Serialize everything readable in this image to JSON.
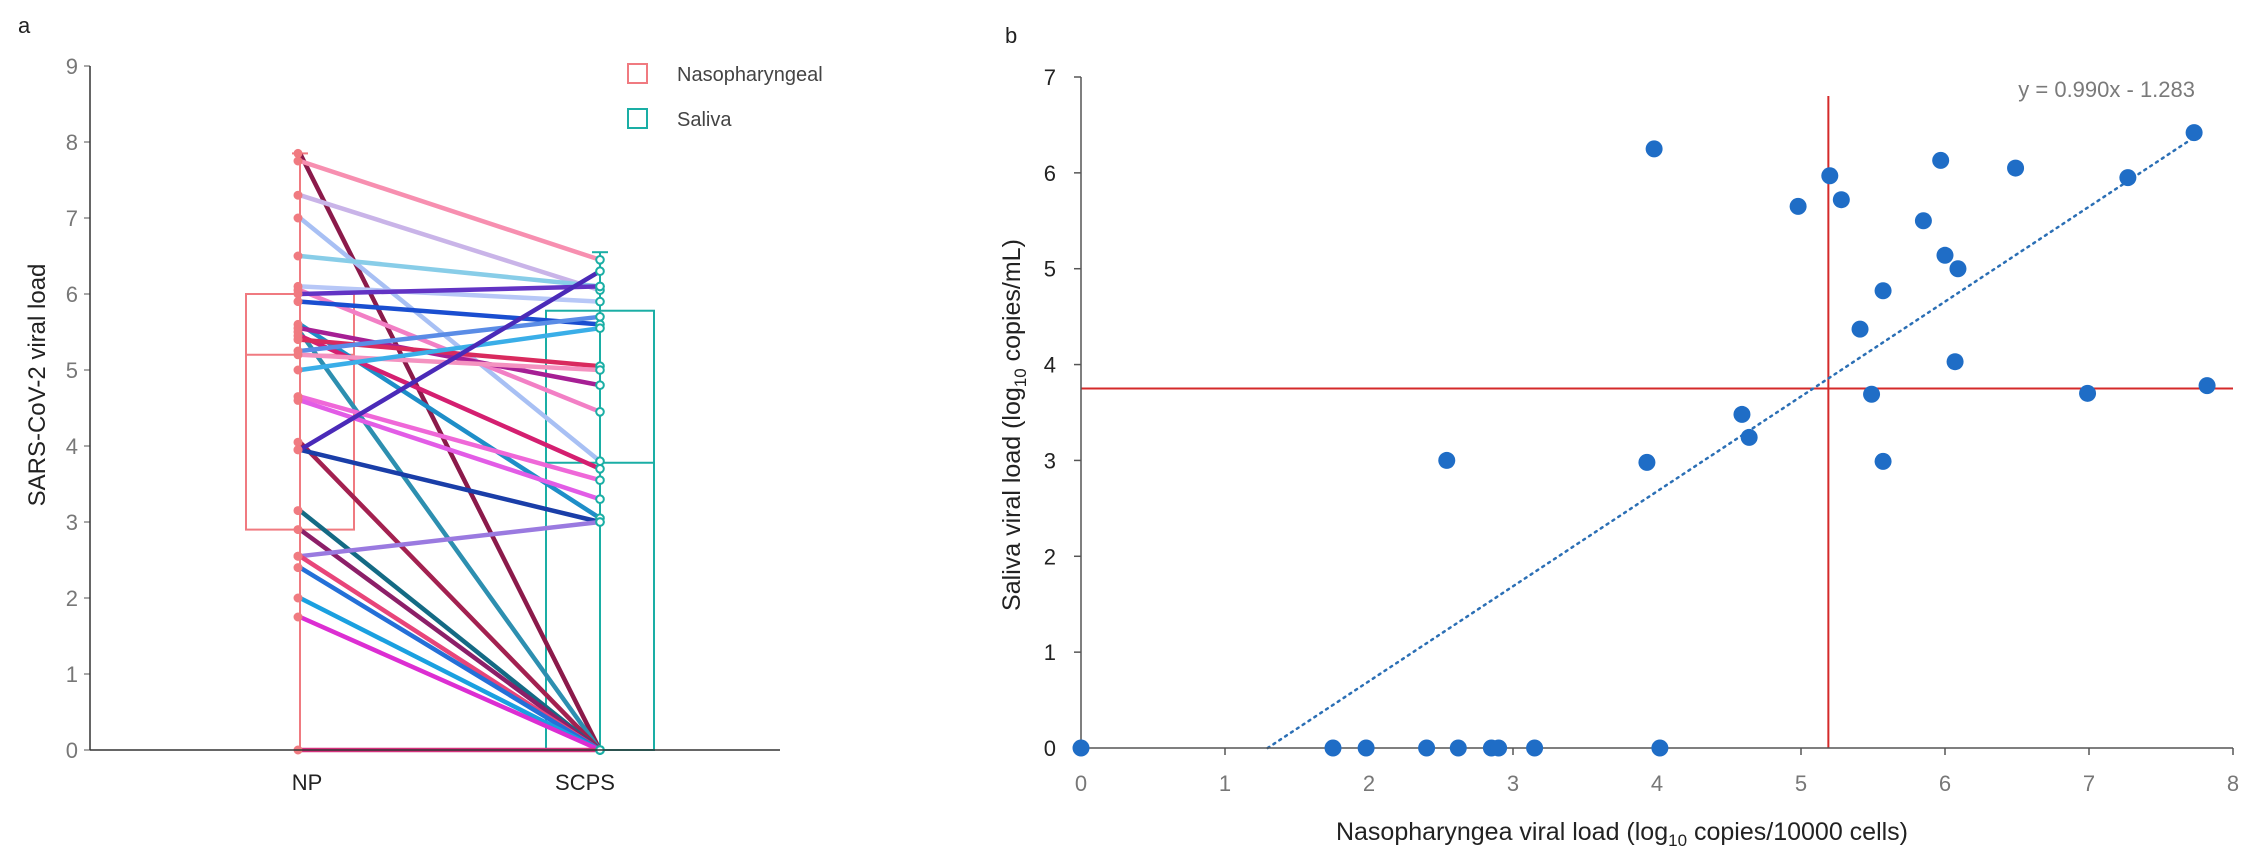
{
  "chart_data": [
    {
      "panel_label": "a",
      "type": "line",
      "subtype": "paired-box-plot",
      "title": "",
      "xlabel": "",
      "ylabel": "SARS-CoV-2 viral load",
      "ylim": [
        0,
        9
      ],
      "yticks": [
        0,
        1,
        2,
        3,
        4,
        5,
        6,
        7,
        8,
        9
      ],
      "categories": [
        "NP",
        "SCPS"
      ],
      "legend": [
        {
          "name": "Nasopharyngeal",
          "color": "#f07a80"
        },
        {
          "name": "Saliva",
          "color": "#1aaea5"
        }
      ],
      "boxes": [
        {
          "name": "Nasopharyngeal",
          "category": "NP",
          "q1": 2.9,
          "median": 5.2,
          "q3": 6.0,
          "whisker_low": 0,
          "whisker_high": 7.85,
          "color": "#f07a80"
        },
        {
          "name": "Saliva",
          "category": "SCPS",
          "q1": 0,
          "median": 3.78,
          "q3": 5.78,
          "whisker_low": 0,
          "whisker_high": 6.55,
          "color": "#1aaea5"
        }
      ],
      "series": [
        {
          "values": [
            7.85,
            0.0
          ],
          "color": "#8b1a4a"
        },
        {
          "values": [
            7.75,
            6.45
          ],
          "color": "#f78fb0"
        },
        {
          "values": [
            7.3,
            6.05
          ],
          "color": "#c9b4e8"
        },
        {
          "values": [
            7.0,
            3.8
          ],
          "color": "#a8c0f4"
        },
        {
          "values": [
            6.5,
            6.1
          ],
          "color": "#88cde8"
        },
        {
          "values": [
            6.1,
            5.9
          ],
          "color": "#b7c7f7"
        },
        {
          "values": [
            6.05,
            4.45
          ],
          "color": "#f27fc5"
        },
        {
          "values": [
            6.0,
            6.1
          ],
          "color": "#6233c4"
        },
        {
          "values": [
            5.9,
            5.6
          ],
          "color": "#1a4ed0"
        },
        {
          "values": [
            5.6,
            3.05
          ],
          "color": "#1e8ec8"
        },
        {
          "values": [
            5.55,
            4.8
          ],
          "color": "#a61f94"
        },
        {
          "values": [
            5.5,
            0.0
          ],
          "color": "#2d8fb0"
        },
        {
          "values": [
            5.45,
            3.7
          ],
          "color": "#d41f70"
        },
        {
          "values": [
            5.4,
            5.05
          ],
          "color": "#d92a5e"
        },
        {
          "values": [
            5.25,
            5.7
          ],
          "color": "#5a8ce6"
        },
        {
          "values": [
            5.2,
            5.0
          ],
          "color": "#f492c0"
        },
        {
          "values": [
            5.0,
            5.55
          ],
          "color": "#3aaee8"
        },
        {
          "values": [
            4.65,
            3.55
          ],
          "color": "#ef68d8"
        },
        {
          "values": [
            4.6,
            3.3
          ],
          "color": "#e25ce6"
        },
        {
          "values": [
            4.05,
            0.0
          ],
          "color": "#a32150"
        },
        {
          "values": [
            3.95,
            3.0
          ],
          "color": "#1a3ea8"
        },
        {
          "values": [
            3.95,
            6.3
          ],
          "color": "#4a2ab8"
        },
        {
          "values": [
            3.15,
            0.0
          ],
          "color": "#146a84"
        },
        {
          "values": [
            2.9,
            0.0
          ],
          "color": "#8c1f68"
        },
        {
          "values": [
            2.55,
            3.0
          ],
          "color": "#9a7ae0"
        },
        {
          "values": [
            2.55,
            0.0
          ],
          "color": "#e8457a"
        },
        {
          "values": [
            2.4,
            0.0
          ],
          "color": "#2470d8"
        },
        {
          "values": [
            2.0,
            0.0
          ],
          "color": "#1aa0e0"
        },
        {
          "values": [
            1.75,
            0.0
          ],
          "color": "#dc2ed2"
        },
        {
          "values": [
            0.0,
            0.0
          ],
          "color": "#d6337e"
        }
      ]
    },
    {
      "panel_label": "b",
      "type": "scatter",
      "title": "",
      "xlabel_parts": [
        "Nasopharyngea viral load (log",
        "10",
        " copies/10000 cells)"
      ],
      "ylabel_parts": [
        "Saliva viral load (log",
        "10",
        " copies/mL)"
      ],
      "xlim": [
        0,
        8
      ],
      "ylim": [
        0,
        7
      ],
      "xticks": [
        0,
        1,
        2,
        3,
        4,
        5,
        6,
        7,
        8
      ],
      "yticks": [
        0,
        1,
        2,
        3,
        4,
        5,
        6,
        7
      ],
      "trendline": {
        "equation": "y = 0.990x - 1.283",
        "slope": 0.99,
        "intercept": -1.283,
        "x_range": [
          1.296,
          7.72
        ],
        "color": "#2b6fb5"
      },
      "reference_lines": {
        "vertical_x": 5.19,
        "horizontal_y": 3.75,
        "color": "#d42a2a"
      },
      "point_color": "#1f6dc6",
      "points": [
        {
          "x": 0.0,
          "y": 0.0
        },
        {
          "x": 1.75,
          "y": 0.0
        },
        {
          "x": 1.98,
          "y": 0.0
        },
        {
          "x": 2.4,
          "y": 0.0
        },
        {
          "x": 2.62,
          "y": 0.0
        },
        {
          "x": 2.85,
          "y": 0.0
        },
        {
          "x": 2.9,
          "y": 0.0
        },
        {
          "x": 3.15,
          "y": 0.0
        },
        {
          "x": 4.02,
          "y": 0.0
        },
        {
          "x": 2.54,
          "y": 3.0
        },
        {
          "x": 3.93,
          "y": 2.98
        },
        {
          "x": 3.98,
          "y": 6.25
        },
        {
          "x": 4.59,
          "y": 3.48
        },
        {
          "x": 4.64,
          "y": 3.24
        },
        {
          "x": 4.98,
          "y": 5.65
        },
        {
          "x": 5.2,
          "y": 5.97
        },
        {
          "x": 5.28,
          "y": 5.72
        },
        {
          "x": 5.41,
          "y": 4.37
        },
        {
          "x": 5.49,
          "y": 3.69
        },
        {
          "x": 5.57,
          "y": 4.77
        },
        {
          "x": 5.57,
          "y": 2.99
        },
        {
          "x": 5.85,
          "y": 5.5
        },
        {
          "x": 5.97,
          "y": 6.13
        },
        {
          "x": 6.0,
          "y": 5.14
        },
        {
          "x": 6.07,
          "y": 4.03
        },
        {
          "x": 6.09,
          "y": 5.0
        },
        {
          "x": 6.49,
          "y": 6.05
        },
        {
          "x": 6.99,
          "y": 3.7
        },
        {
          "x": 7.27,
          "y": 5.95
        },
        {
          "x": 7.73,
          "y": 6.42
        },
        {
          "x": 7.82,
          "y": 3.78
        }
      ]
    }
  ]
}
